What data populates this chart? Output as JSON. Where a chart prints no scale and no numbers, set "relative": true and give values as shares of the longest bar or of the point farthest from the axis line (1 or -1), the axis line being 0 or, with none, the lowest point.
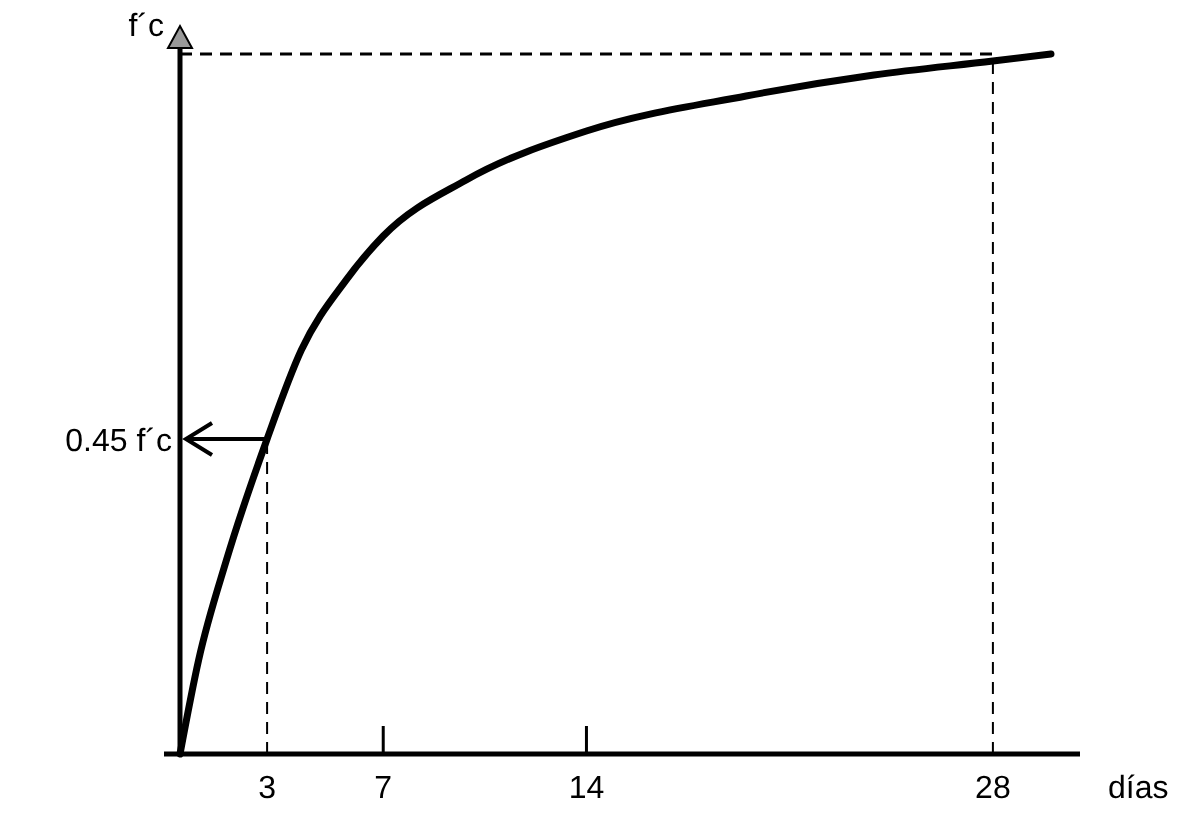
{
  "chart_data": {
    "type": "line",
    "relative": true,
    "xlabel": "días",
    "ylabel": "f´c",
    "x": [
      0,
      0.64,
      1.6,
      3,
      4.18,
      5.72,
      7,
      9.86,
      14,
      19.5,
      23.9,
      28,
      30
    ],
    "series": [
      {
        "color": "#000000",
        "values": [
          0,
          0.134,
          0.277,
          0.45,
          0.577,
          0.677,
          0.74,
          0.82,
          0.89,
          0.94,
          0.97,
          0.99,
          1
        ]
      }
    ],
    "xlim": [
      0,
      31
    ],
    "xticks": [
      3,
      7,
      14,
      28
    ],
    "ref_lines": [
      {
        "axis": "x",
        "value": 3,
        "line_style": "dashed"
      },
      {
        "axis": "x",
        "value": 28,
        "line_style": "dashed"
      },
      {
        "axis": "y",
        "value": 1,
        "line_style": "dashed"
      },
      {
        "axis": "y",
        "value": 0.45,
        "label": "0.45 f´c",
        "line_style": "solid"
      }
    ],
    "grid": false,
    "line_style": "solid",
    "marker": "none"
  }
}
